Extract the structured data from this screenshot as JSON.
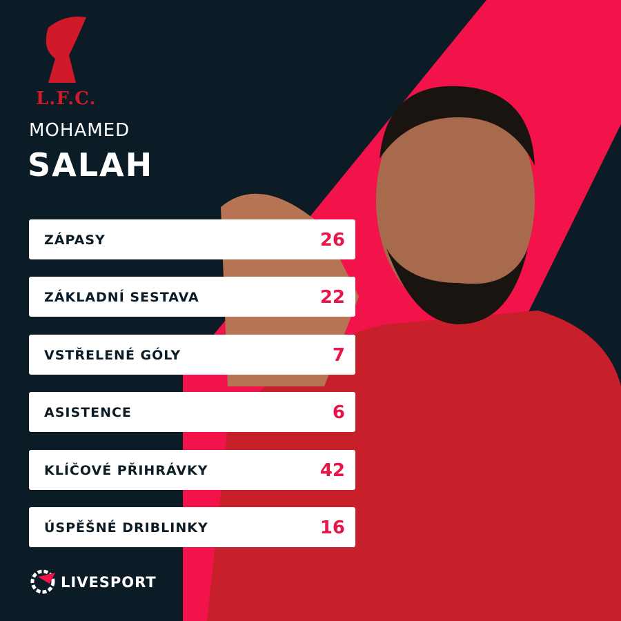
{
  "crest": "L.F.C.",
  "player": {
    "first_name": "MOHAMED",
    "last_name": "SALAH"
  },
  "stats": [
    {
      "label": "ZÁPASY",
      "value": 26
    },
    {
      "label": "ZÁKLADNÍ SESTAVA",
      "value": 22
    },
    {
      "label": "VSTŘELENÉ GÓLY",
      "value": 7
    },
    {
      "label": "ASISTENCE",
      "value": 6
    },
    {
      "label": "KLÍČOVÉ PŘIHRÁVKY",
      "value": 42
    },
    {
      "label": "ÚSPĚŠNÉ DRIBLINKY",
      "value": 16
    }
  ],
  "footer": {
    "brand": "LIVESPORT"
  }
}
